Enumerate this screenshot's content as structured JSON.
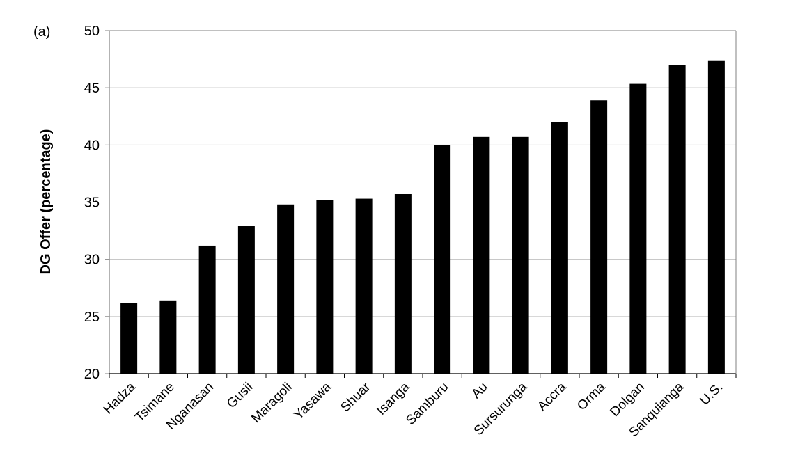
{
  "panel_label": "(a)",
  "chart_data": {
    "type": "bar",
    "categories": [
      "Hadza",
      "Tsimane",
      "Nganasan",
      "Gusii",
      "Maragoli",
      "Yasawa",
      "Shuar",
      "Isanga",
      "Samburu",
      "Au",
      "Sursurunga",
      "Accra",
      "Orma",
      "Dolgan",
      "Sanquianga",
      "U.S."
    ],
    "values": [
      26.2,
      26.4,
      31.2,
      32.9,
      34.8,
      35.2,
      35.3,
      35.7,
      40.0,
      40.7,
      40.7,
      42.0,
      43.9,
      45.4,
      47.0,
      47.4
    ],
    "title": "",
    "xlabel": "",
    "ylabel": "DG Offer (percentage)",
    "ylim": [
      20,
      50
    ],
    "yticks": [
      20,
      25,
      30,
      35,
      40,
      45,
      50
    ],
    "grid": true,
    "bar_color": "#000000",
    "grid_color": "#c0c0c0",
    "axis_color": "#808080"
  }
}
